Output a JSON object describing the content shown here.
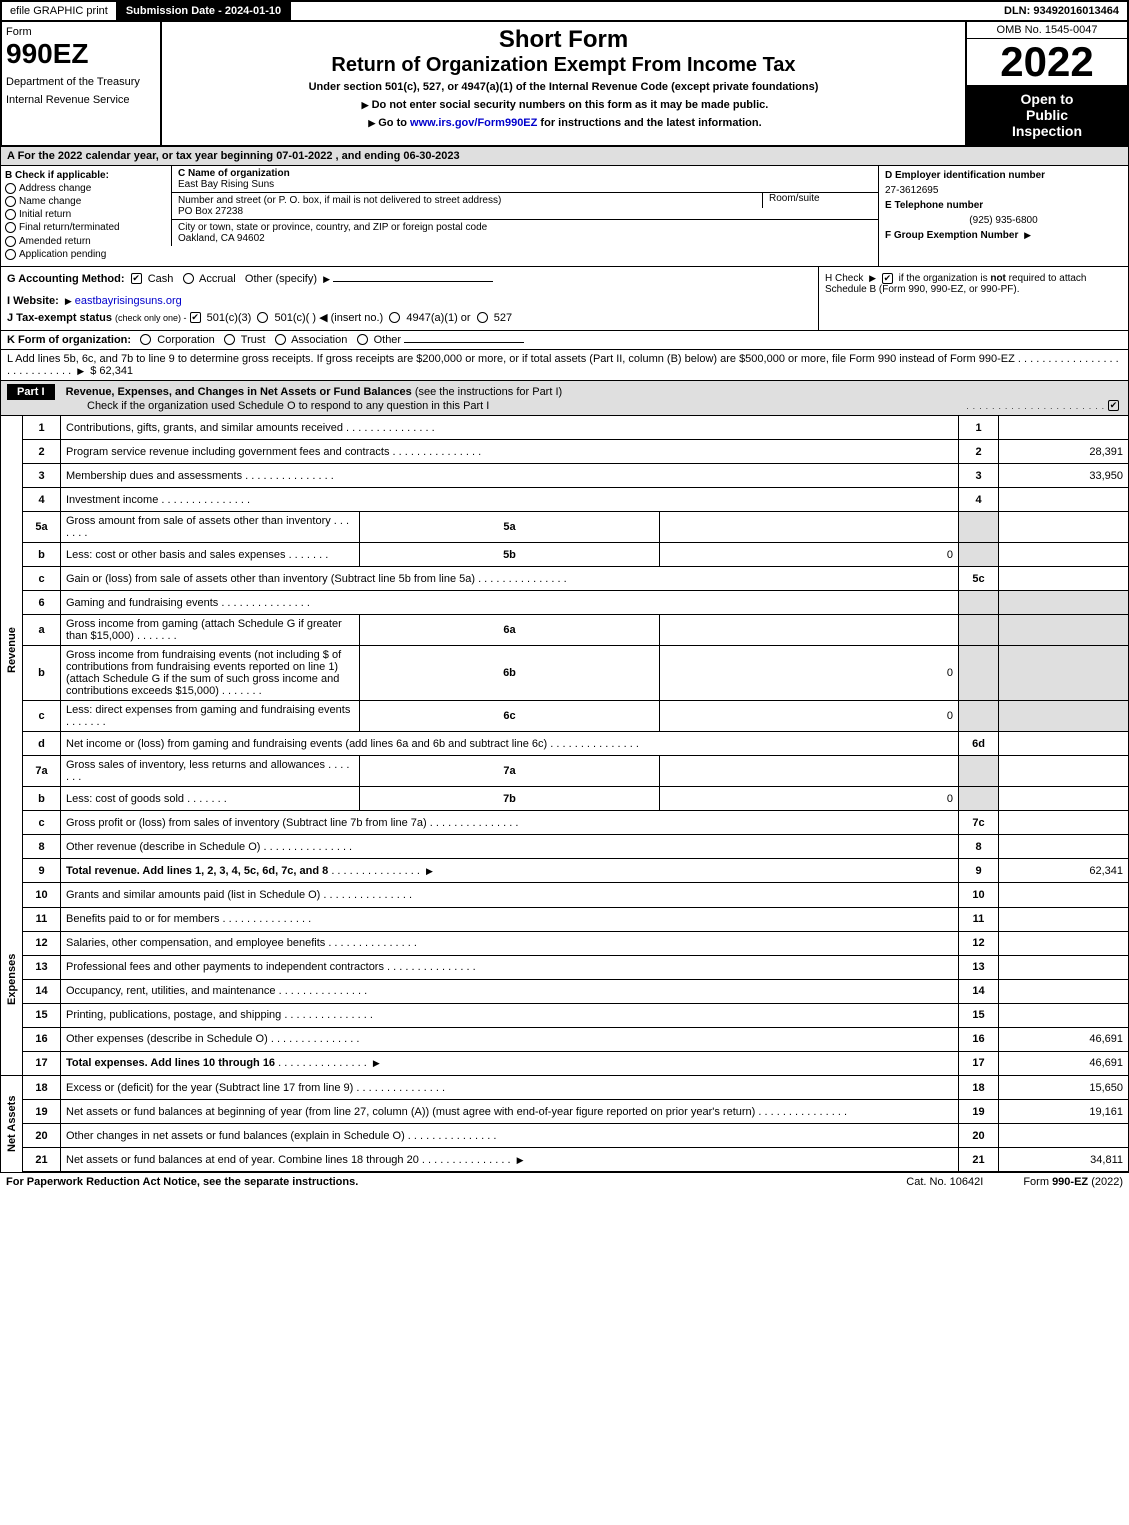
{
  "colors": {
    "header_grey": "#dfdfdf",
    "black": "#000000",
    "white": "#ffffff",
    "link": "#0000cc"
  },
  "top": {
    "efile": "efile GRAPHIC print",
    "submission": "Submission Date - 2024-01-10",
    "dln": "DLN: 93492016013464"
  },
  "header": {
    "form_word": "Form",
    "form_num": "990EZ",
    "dept": "Department of the Treasury",
    "irs": "Internal Revenue Service",
    "title1": "Short Form",
    "title2": "Return of Organization Exempt From Income Tax",
    "subtitle": "Under section 501(c), 527, or 4947(a)(1) of the Internal Revenue Code (except private foundations)",
    "warn": "Do not enter social security numbers on this form as it may be made public.",
    "goto_pre": "Go to ",
    "goto_link": "www.irs.gov/Form990EZ",
    "goto_post": " for instructions and the latest information.",
    "omb": "OMB No. 1545-0047",
    "year": "2022",
    "open1": "Open to",
    "open2": "Public",
    "open3": "Inspection"
  },
  "a": "A  For the 2022 calendar year, or tax year beginning 07-01-2022 , and ending 06-30-2023",
  "b": {
    "label": "B  Check if applicable:",
    "items": [
      "Address change",
      "Name change",
      "Initial return",
      "Final return/terminated",
      "Amended return",
      "Application pending"
    ]
  },
  "c": {
    "c_lbl": "C Name of organization",
    "name": "East Bay Rising Suns",
    "addr_lbl": "Number and street (or P. O. box, if mail is not delivered to street address)",
    "room_lbl": "Room/suite",
    "addr": "PO Box 27238",
    "city_lbl": "City or town, state or province, country, and ZIP or foreign postal code",
    "city": "Oakland, CA  94602"
  },
  "d": {
    "d_lbl": "D Employer identification number",
    "ein": "27-3612695",
    "e_lbl": "E Telephone number",
    "phone": "(925) 935-6800",
    "f_lbl": "F Group Exemption Number"
  },
  "g": {
    "lbl": "G Accounting Method:",
    "cash": "Cash",
    "accrual": "Accrual",
    "other": "Other (specify)"
  },
  "h": {
    "text1": "H  Check",
    "text2": "if the organization is ",
    "not": "not",
    "text3": " required to attach Schedule B (Form 990, 990-EZ, or 990-PF)."
  },
  "i": {
    "lbl": "I Website:",
    "link": "eastbayrisingsuns.org"
  },
  "j": {
    "lbl": "J Tax-exempt status",
    "sub": "(check only one) -",
    "o501c3": "501(c)(3)",
    "o501c": "501(c)( )",
    "insert": "(insert no.)",
    "o4947": "4947(a)(1) or",
    "o527": "527"
  },
  "k": {
    "lbl": "K Form of organization:",
    "opts": [
      "Corporation",
      "Trust",
      "Association",
      "Other"
    ]
  },
  "l": {
    "text": "L Add lines 5b, 6c, and 7b to line 9 to determine gross receipts. If gross receipts are $200,000 or more, or if total assets (Part II, column (B) below) are $500,000 or more, file Form 990 instead of Form 990-EZ",
    "amount": "$ 62,341"
  },
  "part1": {
    "label": "Part I",
    "title": "Revenue, Expenses, and Changes in Net Assets or Fund Balances",
    "sub": "(see the instructions for Part I)",
    "check": "Check if the organization used Schedule O to respond to any question in this Part I"
  },
  "sections": {
    "revenue": "Revenue",
    "expenses": "Expenses",
    "netassets": "Net Assets"
  },
  "rows": [
    {
      "n": "1",
      "t": "Contributions, gifts, grants, and similar amounts received",
      "num": "1",
      "val": ""
    },
    {
      "n": "2",
      "t": "Program service revenue including government fees and contracts",
      "num": "2",
      "val": "28,391"
    },
    {
      "n": "3",
      "t": "Membership dues and assessments",
      "num": "3",
      "val": "33,950"
    },
    {
      "n": "4",
      "t": "Investment income",
      "num": "4",
      "val": ""
    },
    {
      "n": "5a",
      "t": "Gross amount from sale of assets other than inventory",
      "sub": "5a",
      "subval": "",
      "grey": true
    },
    {
      "n": "b",
      "t": "Less: cost or other basis and sales expenses",
      "sub": "5b",
      "subval": "0",
      "grey": true
    },
    {
      "n": "c",
      "t": "Gain or (loss) from sale of assets other than inventory (Subtract line 5b from line 5a)",
      "num": "5c",
      "val": ""
    },
    {
      "n": "6",
      "t": "Gaming and fundraising events",
      "grey": true,
      "greyval": true
    },
    {
      "n": "a",
      "t": "Gross income from gaming (attach Schedule G if greater than $15,000)",
      "sub": "6a",
      "subval": "",
      "grey": true,
      "greyval": true
    },
    {
      "n": "b",
      "t": "Gross income from fundraising events (not including $                     of contributions from fundraising events reported on line 1) (attach Schedule G if the sum of such gross income and contributions exceeds $15,000)",
      "sub": "6b",
      "subval": "0",
      "grey": true,
      "greyval": true
    },
    {
      "n": "c",
      "t": "Less: direct expenses from gaming and fundraising events",
      "sub": "6c",
      "subval": "0",
      "grey": true,
      "greyval": true
    },
    {
      "n": "d",
      "t": "Net income or (loss) from gaming and fundraising events (add lines 6a and 6b and subtract line 6c)",
      "num": "6d",
      "val": ""
    },
    {
      "n": "7a",
      "t": "Gross sales of inventory, less returns and allowances",
      "sub": "7a",
      "subval": "",
      "grey": true
    },
    {
      "n": "b",
      "t": "Less: cost of goods sold",
      "sub": "7b",
      "subval": "0",
      "grey": true
    },
    {
      "n": "c",
      "t": "Gross profit or (loss) from sales of inventory (Subtract line 7b from line 7a)",
      "num": "7c",
      "val": ""
    },
    {
      "n": "8",
      "t": "Other revenue (describe in Schedule O)",
      "num": "8",
      "val": ""
    },
    {
      "n": "9",
      "t": "Total revenue. Add lines 1, 2, 3, 4, 5c, 6d, 7c, and 8",
      "num": "9",
      "val": "62,341",
      "bold": true,
      "arrow": true
    }
  ],
  "exp_rows": [
    {
      "n": "10",
      "t": "Grants and similar amounts paid (list in Schedule O)",
      "num": "10",
      "val": ""
    },
    {
      "n": "11",
      "t": "Benefits paid to or for members",
      "num": "11",
      "val": ""
    },
    {
      "n": "12",
      "t": "Salaries, other compensation, and employee benefits",
      "num": "12",
      "val": ""
    },
    {
      "n": "13",
      "t": "Professional fees and other payments to independent contractors",
      "num": "13",
      "val": ""
    },
    {
      "n": "14",
      "t": "Occupancy, rent, utilities, and maintenance",
      "num": "14",
      "val": ""
    },
    {
      "n": "15",
      "t": "Printing, publications, postage, and shipping",
      "num": "15",
      "val": ""
    },
    {
      "n": "16",
      "t": "Other expenses (describe in Schedule O)",
      "num": "16",
      "val": "46,691"
    },
    {
      "n": "17",
      "t": "Total expenses. Add lines 10 through 16",
      "num": "17",
      "val": "46,691",
      "bold": true,
      "arrow": true
    }
  ],
  "net_rows": [
    {
      "n": "18",
      "t": "Excess or (deficit) for the year (Subtract line 17 from line 9)",
      "num": "18",
      "val": "15,650"
    },
    {
      "n": "19",
      "t": "Net assets or fund balances at beginning of year (from line 27, column (A)) (must agree with end-of-year figure reported on prior year's return)",
      "num": "19",
      "val": "19,161"
    },
    {
      "n": "20",
      "t": "Other changes in net assets or fund balances (explain in Schedule O)",
      "num": "20",
      "val": ""
    },
    {
      "n": "21",
      "t": "Net assets or fund balances at end of year. Combine lines 18 through 20",
      "num": "21",
      "val": "34,811",
      "arrow": true
    }
  ],
  "footer": {
    "left": "For Paperwork Reduction Act Notice, see the separate instructions.",
    "center": "Cat. No. 10642I",
    "right_pre": "Form ",
    "right_bold": "990-EZ",
    "right_post": " (2022)"
  }
}
